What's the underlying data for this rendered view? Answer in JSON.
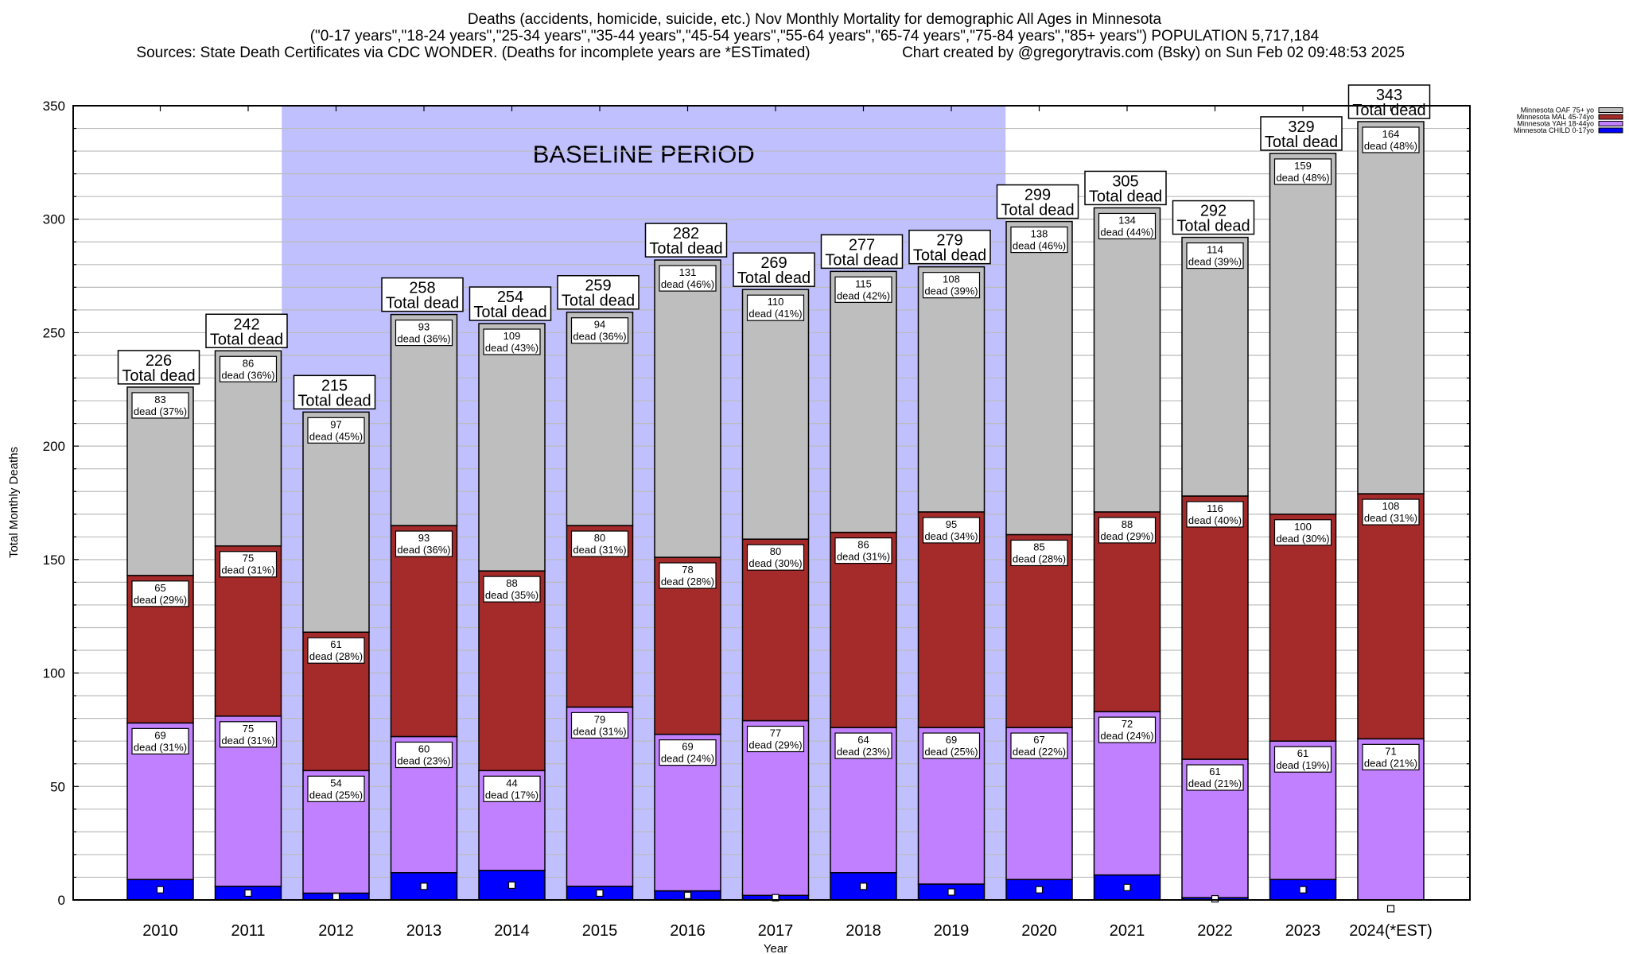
{
  "header": {
    "title_line1": "Deaths (accidents, homicide, suicide, etc.) Nov Monthly Mortality for demographic All Ages in Minnesota",
    "title_line2": "(\"0-17 years\",\"18-24 years\",\"25-34 years\",\"35-44 years\",\"45-54 years\",\"55-64 years\",\"65-74 years\",\"75-84 years\",\"85+ years\") POPULATION 5,717,184",
    "sources": "Sources: State Death Certificates via CDC WONDER. (Deaths for incomplete years are *ESTimated)",
    "credit": "Chart created by @gregorytravis.com (Bsky) on Sun Feb 02 09:48:53 2025"
  },
  "chart_data": {
    "type": "bar",
    "stacked": true,
    "title": "Deaths (accidents, homicide, suicide, etc.) Nov Monthly Mortality for demographic All Ages in Minnesota",
    "xlabel": "Year",
    "ylabel": "Total Monthly Deaths",
    "ylim": [
      0,
      350
    ],
    "yticks": [
      0,
      50,
      100,
      150,
      200,
      250,
      300,
      350
    ],
    "grid": true,
    "legend_position": "top-right (outside)",
    "categories": [
      "2010",
      "2011",
      "2012",
      "2013",
      "2014",
      "2015",
      "2016",
      "2017",
      "2018",
      "2019",
      "2020",
      "2021",
      "2022",
      "2023",
      "2024(*EST)"
    ],
    "series": [
      {
        "name": "Minnesota CHILD 0-17yo",
        "color": "#0000FF",
        "values": [
          9,
          6,
          3,
          12,
          13,
          6,
          4,
          2,
          12,
          7,
          9,
          11,
          1,
          9,
          0
        ],
        "labeled": false
      },
      {
        "name": "Minnesota YAH 18-44yo",
        "color": "#C080FF",
        "values": [
          69,
          75,
          54,
          60,
          44,
          79,
          69,
          77,
          64,
          69,
          67,
          72,
          61,
          61,
          71
        ],
        "percents": [
          31,
          31,
          25,
          23,
          17,
          31,
          24,
          29,
          23,
          25,
          22,
          24,
          21,
          19,
          21
        ],
        "labeled": true
      },
      {
        "name": "Minnesota MAL 45-74yo",
        "color": "#A52A2A",
        "values": [
          65,
          75,
          61,
          93,
          88,
          80,
          78,
          80,
          86,
          95,
          85,
          88,
          116,
          100,
          108
        ],
        "percents": [
          29,
          31,
          28,
          36,
          35,
          31,
          28,
          30,
          31,
          34,
          28,
          29,
          40,
          30,
          31
        ],
        "labeled": true
      },
      {
        "name": "Minnesota OAF 75+ yo",
        "color": "#BEBEBE",
        "values": [
          83,
          86,
          97,
          93,
          109,
          94,
          131,
          110,
          115,
          108,
          138,
          134,
          114,
          159,
          164
        ],
        "percents": [
          37,
          36,
          45,
          36,
          43,
          36,
          46,
          41,
          42,
          39,
          46,
          44,
          39,
          48,
          48
        ],
        "labeled": true
      }
    ],
    "totals": [
      226,
      242,
      215,
      258,
      254,
      259,
      282,
      269,
      277,
      279,
      299,
      305,
      292,
      329,
      343
    ],
    "total_label_suffix": "Total dead",
    "segment_label_word": "dead",
    "annotations": [
      {
        "text": "BASELINE PERIOD",
        "span": [
          "2012",
          "2019"
        ],
        "color": "#C0C0FF"
      }
    ],
    "legend_order": [
      "Minnesota OAF 75+ yo",
      "Minnesota MAL 45-74yo",
      "Minnesota YAH 18-44yo",
      "Minnesota CHILD 0-17yo"
    ]
  }
}
